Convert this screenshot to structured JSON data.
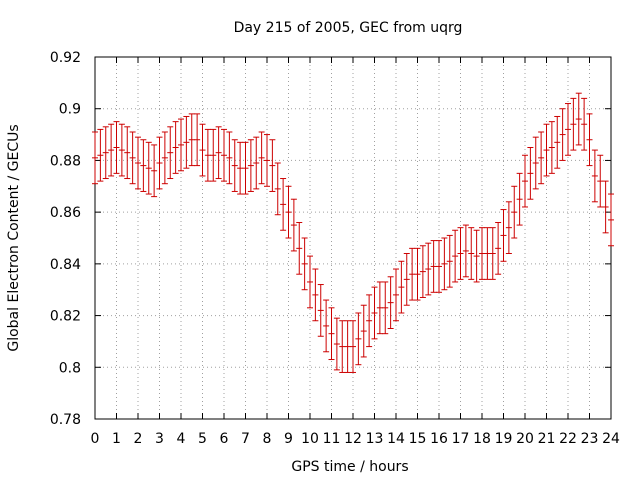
{
  "chart_data": {
    "type": "scatter",
    "title": "Day 215 of 2005, GEC from uqrg",
    "xlabel": "GPS time / hours",
    "ylabel": "Global Electron Content / GECUs",
    "xlim": [
      0,
      24
    ],
    "ylim": [
      0.78,
      0.92
    ],
    "xticks": [
      "0",
      "1",
      "2",
      "3",
      "4",
      "5",
      "6",
      "7",
      "8",
      "9",
      "10",
      "11",
      "12",
      "13",
      "14",
      "15",
      "16",
      "17",
      "18",
      "19",
      "20",
      "21",
      "22",
      "23",
      "24"
    ],
    "yticks": [
      "0.78",
      "0.8",
      "0.82",
      "0.84",
      "0.86",
      "0.88",
      "0.9",
      "0.92"
    ],
    "grid": true,
    "error_bars": true,
    "series": [
      {
        "color": "#cc0000",
        "x": [
          0.0,
          0.25,
          0.5,
          0.75,
          1.0,
          1.25,
          1.5,
          1.75,
          2.0,
          2.25,
          2.5,
          2.75,
          3.0,
          3.25,
          3.5,
          3.75,
          4.0,
          4.25,
          4.5,
          4.75,
          5.0,
          5.25,
          5.5,
          5.75,
          6.0,
          6.25,
          6.5,
          6.75,
          7.0,
          7.25,
          7.5,
          7.75,
          8.0,
          8.25,
          8.5,
          8.75,
          9.0,
          9.25,
          9.5,
          9.75,
          10.0,
          10.25,
          10.5,
          10.75,
          11.0,
          11.25,
          11.5,
          11.75,
          12.0,
          12.25,
          12.5,
          12.75,
          13.0,
          13.25,
          13.5,
          13.75,
          14.0,
          14.25,
          14.5,
          14.75,
          15.0,
          15.25,
          15.5,
          15.75,
          16.0,
          16.25,
          16.5,
          16.75,
          17.0,
          17.25,
          17.5,
          17.75,
          18.0,
          18.25,
          18.5,
          18.75,
          19.0,
          19.25,
          19.5,
          19.75,
          20.0,
          20.25,
          20.5,
          20.75,
          21.0,
          21.25,
          21.5,
          21.75,
          22.0,
          22.25,
          22.5,
          22.75,
          23.0,
          23.25,
          23.5,
          23.75,
          24.0
        ],
        "y": [
          0.881,
          0.882,
          0.883,
          0.884,
          0.885,
          0.884,
          0.883,
          0.881,
          0.879,
          0.878,
          0.877,
          0.876,
          0.879,
          0.881,
          0.883,
          0.885,
          0.886,
          0.887,
          0.888,
          0.888,
          0.884,
          0.882,
          0.882,
          0.883,
          0.882,
          0.881,
          0.878,
          0.877,
          0.877,
          0.878,
          0.879,
          0.881,
          0.88,
          0.878,
          0.869,
          0.863,
          0.86,
          0.855,
          0.846,
          0.84,
          0.833,
          0.828,
          0.822,
          0.816,
          0.813,
          0.809,
          0.808,
          0.808,
          0.808,
          0.811,
          0.814,
          0.818,
          0.821,
          0.823,
          0.823,
          0.825,
          0.828,
          0.831,
          0.834,
          0.836,
          0.836,
          0.837,
          0.838,
          0.839,
          0.839,
          0.84,
          0.841,
          0.843,
          0.844,
          0.845,
          0.844,
          0.843,
          0.844,
          0.844,
          0.844,
          0.846,
          0.851,
          0.854,
          0.86,
          0.865,
          0.872,
          0.875,
          0.879,
          0.881,
          0.884,
          0.885,
          0.887,
          0.89,
          0.892,
          0.894,
          0.896,
          0.894,
          0.888,
          0.874,
          0.872,
          0.862,
          0.857
        ],
        "error": 0.01
      }
    ]
  }
}
